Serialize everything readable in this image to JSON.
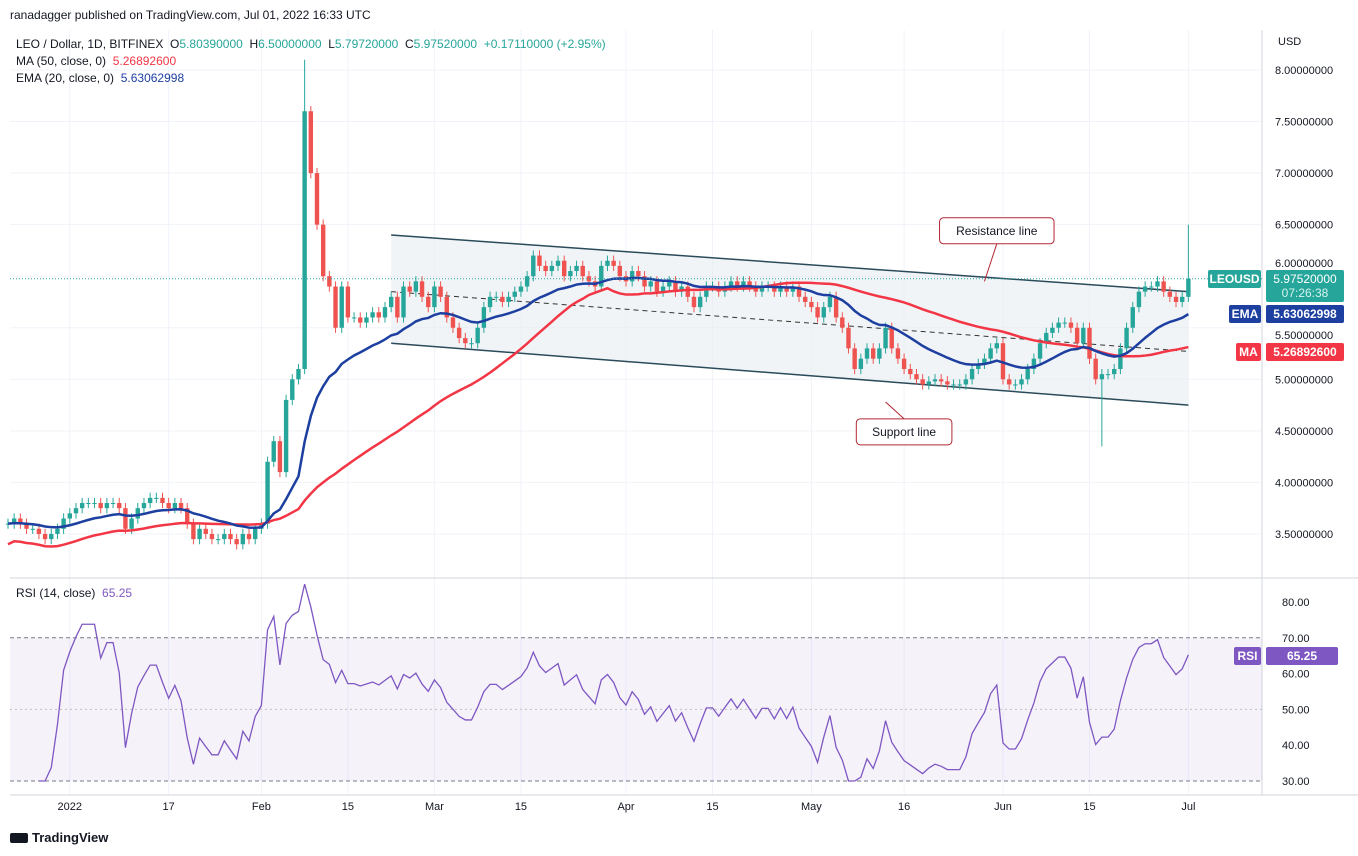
{
  "header": {
    "published": "ranadagger published on TradingView.com, Jul 01, 2022 16:33 UTC"
  },
  "legend": {
    "symbol": "LEO / Dollar, 1D, BITFINEX",
    "o_label": "O",
    "o": "5.80390000",
    "h_label": "H",
    "h": "6.50000000",
    "l_label": "L",
    "l": "5.79720000",
    "c_label": "C",
    "c": "5.97520000",
    "change": "+0.17110000 (+2.95%)",
    "ma_label": "MA (50, close, 0)",
    "ma_value": "5.26892600",
    "ema_label": "EMA (20, close, 0)",
    "ema_value": "5.63062998",
    "rsi_label": "RSI (14, close)",
    "rsi_value": "65.25"
  },
  "badges": {
    "symbol": "LEOUSD",
    "price": "5.97520000",
    "countdown": "07:26:38",
    "ema": "EMA",
    "ema_value": "5.63062998",
    "ma": "MA",
    "ma_value": "5.26892600",
    "rsi": "RSI",
    "rsi_value": "65.25",
    "currency": "USD"
  },
  "colors": {
    "up": "#26a69a",
    "down": "#ef5350",
    "ema": "#1c3fa0",
    "ma": "#f23645",
    "rsi": "#7e57c2"
  },
  "footer": {
    "brand": "TradingView"
  },
  "chart_data": {
    "type": "candlestick",
    "start_date": "2021-12-22",
    "ylim": [
      3.2,
      8.3
    ],
    "y_ticks": [
      "8.00000000",
      "7.50000000",
      "7.00000000",
      "6.50000000",
      "6.00000000",
      "5.50000000",
      "5.00000000",
      "4.50000000",
      "4.00000000",
      "3.50000000"
    ],
    "rsi_ticks": [
      "80.00",
      "70.00",
      "60.00",
      "50.00",
      "40.00",
      "30.00"
    ],
    "x_ticks": [
      {
        "label": "2022",
        "day": 10
      },
      {
        "label": "17",
        "day": 26
      },
      {
        "label": "Feb",
        "day": 41
      },
      {
        "label": "15",
        "day": 55
      },
      {
        "label": "Mar",
        "day": 69
      },
      {
        "label": "15",
        "day": 83
      },
      {
        "label": "Apr",
        "day": 100
      },
      {
        "label": "15",
        "day": 114
      },
      {
        "label": "May",
        "day": 130
      },
      {
        "label": "16",
        "day": 145
      },
      {
        "label": "Jun",
        "day": 161
      },
      {
        "label": "15",
        "day": 175
      },
      {
        "label": "Jul",
        "day": 191
      }
    ],
    "closes": [
      3.6,
      3.65,
      3.6,
      3.55,
      3.55,
      3.5,
      3.45,
      3.5,
      3.55,
      3.65,
      3.7,
      3.75,
      3.8,
      3.8,
      3.8,
      3.75,
      3.8,
      3.8,
      3.75,
      3.55,
      3.65,
      3.75,
      3.8,
      3.85,
      3.85,
      3.8,
      3.75,
      3.8,
      3.75,
      3.6,
      3.45,
      3.55,
      3.5,
      3.45,
      3.45,
      3.5,
      3.45,
      3.4,
      3.5,
      3.45,
      3.55,
      3.6,
      4.2,
      4.4,
      4.1,
      4.8,
      5.0,
      5.1,
      7.6,
      7.0,
      6.5,
      6.0,
      5.9,
      5.5,
      5.9,
      5.6,
      5.6,
      5.55,
      5.6,
      5.65,
      5.6,
      5.7,
      5.8,
      5.6,
      5.9,
      5.85,
      5.95,
      5.8,
      5.7,
      5.9,
      5.8,
      5.6,
      5.5,
      5.4,
      5.35,
      5.35,
      5.5,
      5.7,
      5.8,
      5.8,
      5.75,
      5.8,
      5.85,
      5.9,
      6.0,
      6.2,
      6.1,
      6.05,
      6.1,
      6.15,
      6.0,
      6.05,
      6.1,
      6.0,
      5.95,
      5.9,
      6.1,
      6.15,
      6.1,
      6.0,
      5.95,
      6.05,
      6.0,
      5.9,
      5.95,
      5.85,
      5.9,
      5.95,
      5.85,
      5.9,
      5.8,
      5.7,
      5.8,
      5.9,
      5.9,
      5.85,
      5.9,
      5.95,
      5.9,
      5.95,
      5.9,
      5.85,
      5.9,
      5.9,
      5.85,
      5.9,
      5.85,
      5.9,
      5.8,
      5.75,
      5.7,
      5.6,
      5.7,
      5.8,
      5.6,
      5.5,
      5.3,
      5.1,
      5.2,
      5.3,
      5.2,
      5.3,
      5.5,
      5.3,
      5.2,
      5.1,
      5.05,
      5.0,
      4.95,
      4.98,
      5.0,
      4.98,
      4.95,
      4.95,
      4.95,
      5.0,
      5.1,
      5.15,
      5.2,
      5.3,
      5.35,
      5.0,
      4.95,
      4.95,
      5.0,
      5.1,
      5.2,
      5.35,
      5.45,
      5.5,
      5.55,
      5.55,
      5.5,
      5.35,
      5.5,
      5.2,
      5.0,
      5.05,
      5.05,
      5.1,
      5.3,
      5.5,
      5.7,
      5.85,
      5.9,
      5.9,
      5.95,
      5.85,
      5.8,
      5.75,
      5.8,
      5.9752
    ],
    "last_high": 6.5,
    "spikes": [
      {
        "day": 48,
        "high": 8.1
      },
      {
        "day": 177,
        "low": 4.35
      }
    ],
    "drawings": {
      "resistance": {
        "from": [
          62,
          6.4
        ],
        "to": [
          191,
          5.85
        ]
      },
      "support": {
        "from": [
          62,
          5.35
        ],
        "to": [
          191,
          4.75
        ]
      },
      "midline": {
        "from": [
          62,
          5.85
        ],
        "to": [
          191,
          5.27
        ]
      }
    },
    "annotations": [
      {
        "text": "Resistance line",
        "day": 160,
        "price": 6.45
      },
      {
        "text": "Support line",
        "day": 145,
        "price": 4.5
      }
    ]
  }
}
